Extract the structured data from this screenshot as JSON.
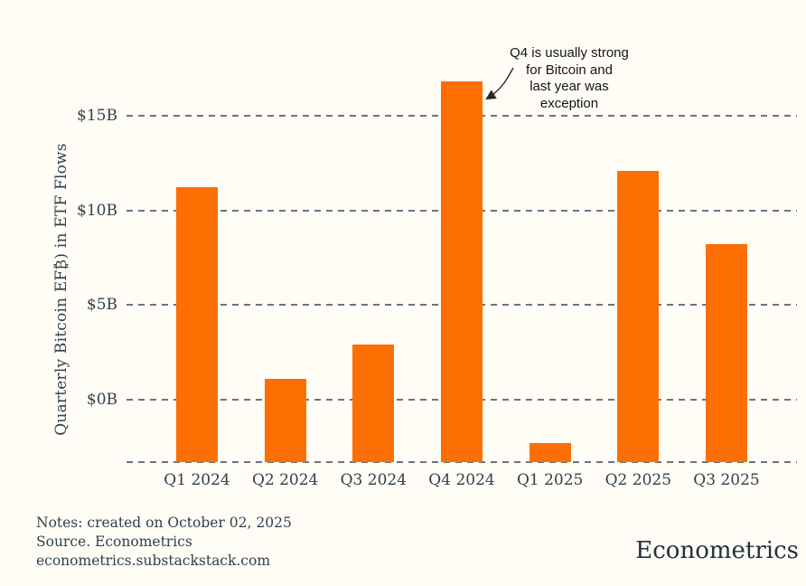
{
  "chart_data": {
    "type": "bar",
    "categories": [
      "Q1 2024",
      "Q2 2024",
      "Q3 2024",
      "Q4 2024",
      "Q1 2025",
      "Q2 2025",
      "Q3 2025"
    ],
    "values": [
      11.2,
      1.1,
      2.9,
      16.8,
      -2.3,
      12.1,
      8.2
    ],
    "title": "",
    "xlabel": "",
    "ylabel": "Quarterly Bitcoin EF₿) in ETF Flows",
    "yticks": [
      {
        "value": 15,
        "label": "$15B"
      },
      {
        "value": 10,
        "label": "$10B"
      },
      {
        "value": 5,
        "label": "$5B"
      },
      {
        "value": 0,
        "label": "$0B"
      }
    ],
    "ylim": [
      -3.3,
      17.5
    ],
    "grid": "horizontal-dashed",
    "legend": "none",
    "bar_color": "#fd6e03",
    "annotation": {
      "lines": [
        "Q4 is usually strong",
        "for Bitcoin and",
        "last year was",
        "exception"
      ],
      "target": "Q4 2024"
    }
  },
  "colors": {
    "background": "#fffdf5",
    "bar": "#fd6e03",
    "gridline": "#6b7480",
    "text": "#32404f",
    "annotation_text": "#141414",
    "brand_text": "#22303f"
  },
  "footer": {
    "notes": "Notes: created on October 02, 2025",
    "source": "Source. Econometrics",
    "url": "econometrics.substackstack.com",
    "brand": "Econometrics"
  }
}
